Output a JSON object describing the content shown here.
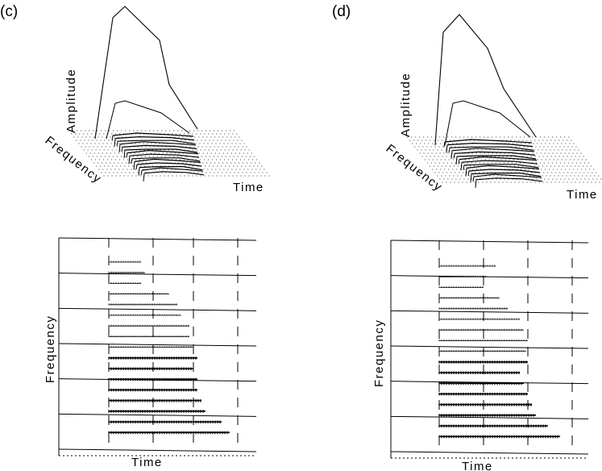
{
  "panels": [
    {
      "label": "(c)",
      "surface": {
        "amplitude_label": "Amplitude",
        "frequency_label": "Frequency",
        "time_label": "Time"
      },
      "spectrogram": {
        "frequency_label": "Frequency",
        "time_label": "Time"
      }
    },
    {
      "label": "(d)",
      "surface": {
        "amplitude_label": "Amplitude",
        "frequency_label": "Frequency",
        "time_label": "Time"
      },
      "spectrogram": {
        "frequency_label": "Frequency",
        "time_label": "Time"
      }
    }
  ]
}
